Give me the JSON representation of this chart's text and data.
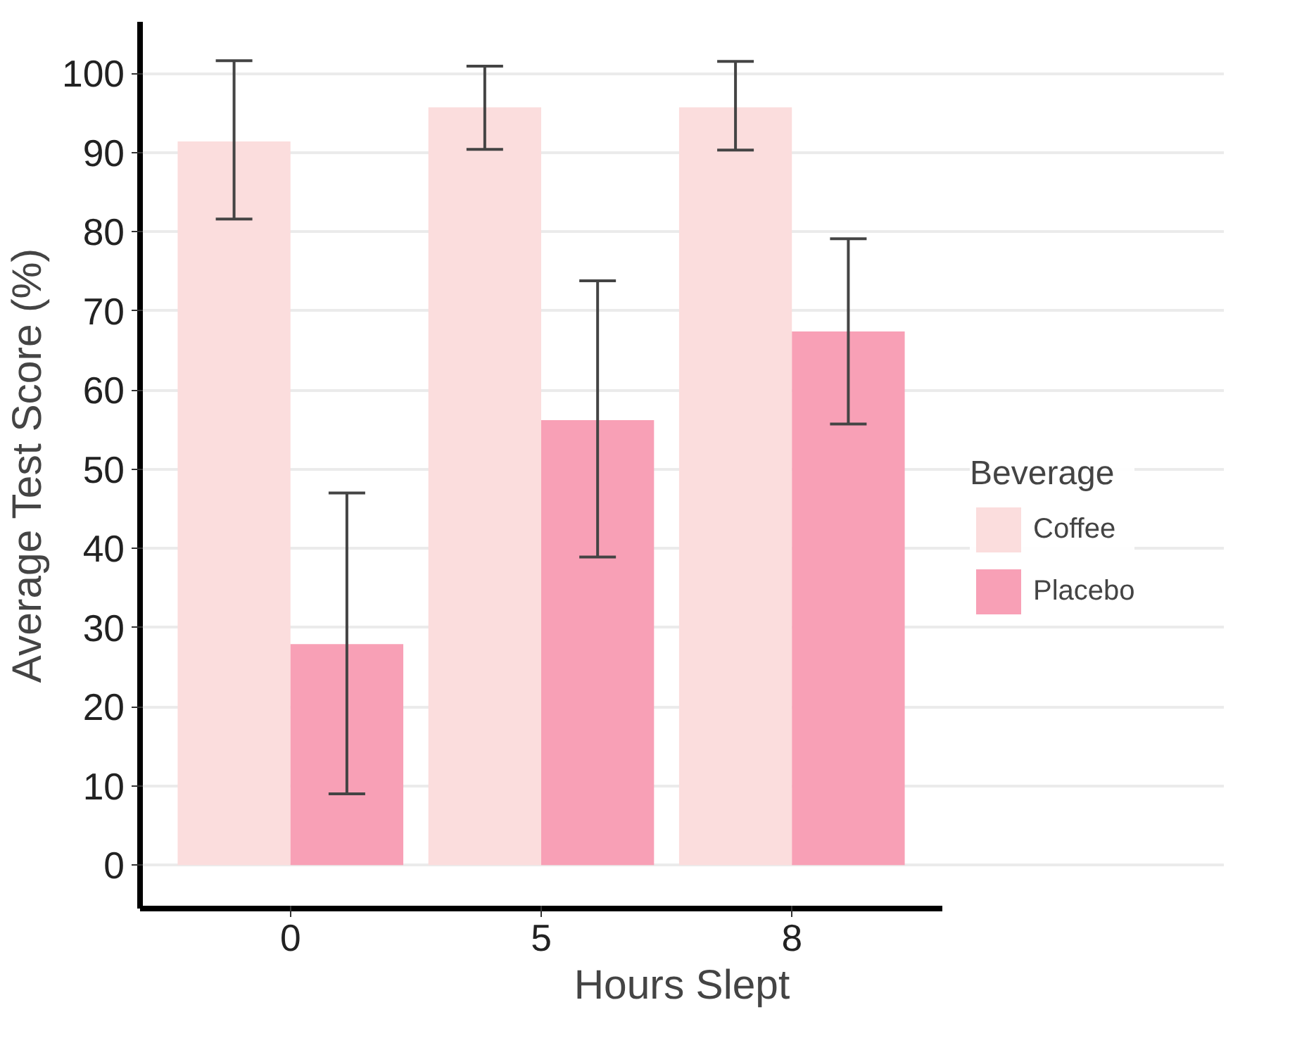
{
  "chart_data": {
    "type": "bar",
    "xlabel": "Hours Slept",
    "ylabel": "Average Test Score (%)",
    "legend_title": "Beverage",
    "categories": [
      "0",
      "5",
      "8"
    ],
    "series": [
      {
        "name": "Coffee",
        "color": "#fbdddd",
        "values": [
          91.4,
          95.7,
          95.7
        ],
        "errors": [
          [
            81.6,
            101.6
          ],
          [
            90.4,
            100.9
          ],
          [
            90.3,
            101.5
          ]
        ]
      },
      {
        "name": "Placebo",
        "color": "#f8a0b6",
        "values": [
          27.9,
          56.2,
          67.4
        ],
        "errors": [
          [
            9.0,
            47.0
          ],
          [
            38.9,
            73.8
          ],
          [
            55.7,
            79.1
          ]
        ]
      }
    ],
    "ylim": [
      -5.5,
      106.5
    ],
    "yticks": [
      0,
      10,
      20,
      30,
      40,
      50,
      60,
      70,
      80,
      90,
      100
    ],
    "grid": "y",
    "legend": "right"
  }
}
